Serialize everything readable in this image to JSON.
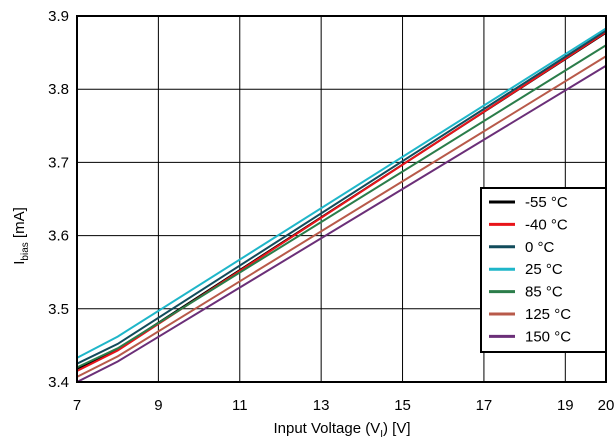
{
  "chart_data": {
    "type": "line",
    "title": "",
    "xlabel": "Input Voltage (V",
    "xlabel_sub": "I",
    "xlabel_tail": ") [V]",
    "ylabel": "I",
    "ylabel_sub": "bias",
    "ylabel_tail": " [mA]",
    "xlim": [
      7,
      20
    ],
    "ylim": [
      3.4,
      3.9
    ],
    "xticks": [
      7,
      9,
      11,
      13,
      15,
      17,
      19,
      20
    ],
    "xtick_labels": [
      "7",
      "9",
      "11",
      "13",
      "15",
      "17",
      "19",
      "20"
    ],
    "yticks": [
      3.4,
      3.5,
      3.6,
      3.7,
      3.8,
      3.9
    ],
    "ytick_labels": [
      "3.4",
      "3.5",
      "3.6",
      "3.7",
      "3.8",
      "3.9"
    ],
    "grid": true,
    "legend_position": "right",
    "series": [
      {
        "name": "-55 °C",
        "color": "#000000",
        "x": [
          7,
          8,
          20
        ],
        "y": [
          3.418,
          3.445,
          3.877
        ]
      },
      {
        "name": "-40 °C",
        "color": "#e8141a",
        "x": [
          7,
          8,
          20
        ],
        "y": [
          3.415,
          3.443,
          3.878
        ]
      },
      {
        "name": "0 °C",
        "color": "#124c5c",
        "x": [
          7,
          8,
          20
        ],
        "y": [
          3.425,
          3.452,
          3.88
        ]
      },
      {
        "name": "25 °C",
        "color": "#1fb6c9",
        "x": [
          7,
          8,
          20
        ],
        "y": [
          3.433,
          3.462,
          3.883
        ]
      },
      {
        "name": "85 °C",
        "color": "#2b7d4a",
        "x": [
          7,
          8,
          20
        ],
        "y": [
          3.42,
          3.446,
          3.86
        ]
      },
      {
        "name": "125 °C",
        "color": "#b85a4a",
        "x": [
          7,
          8,
          20
        ],
        "y": [
          3.407,
          3.435,
          3.845
        ]
      },
      {
        "name": "150 °C",
        "color": "#6b2f78",
        "x": [
          7,
          8,
          20
        ],
        "y": [
          3.4,
          3.428,
          3.832
        ]
      }
    ]
  }
}
